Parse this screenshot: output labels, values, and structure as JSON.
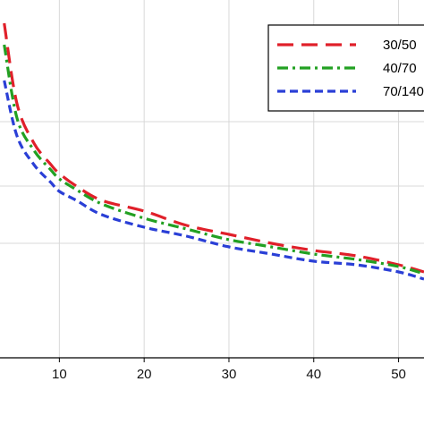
{
  "chart_data": {
    "type": "line",
    "xlim": [
      3,
      53
    ],
    "x_ticks": [
      10,
      20,
      30,
      40,
      50
    ],
    "x_tick_labels": [
      "10",
      "20",
      "30",
      "40",
      "50"
    ],
    "y_grid_fracs": [
      0.34,
      0.52,
      0.68
    ],
    "grid": true,
    "legend_position": "top-right",
    "xlabel": "",
    "ylabel": "",
    "title": "",
    "series": [
      {
        "name": "30/50",
        "color": "#e0202a",
        "dash": "long-dash",
        "x": [
          3.5,
          5,
          7,
          9,
          10,
          12,
          15,
          20,
          25,
          30,
          35,
          40,
          45,
          50,
          53
        ],
        "y_frac": [
          0.065,
          0.29,
          0.4,
          0.46,
          0.485,
          0.52,
          0.56,
          0.59,
          0.63,
          0.655,
          0.68,
          0.7,
          0.715,
          0.74,
          0.76
        ]
      },
      {
        "name": "40/70",
        "color": "#22a022",
        "dash": "dash-dot",
        "x": [
          3.5,
          5,
          7,
          9,
          10,
          12,
          15,
          20,
          25,
          30,
          35,
          40,
          45,
          50,
          53
        ],
        "y_frac": [
          0.125,
          0.33,
          0.42,
          0.475,
          0.5,
          0.53,
          0.57,
          0.61,
          0.64,
          0.67,
          0.69,
          0.71,
          0.725,
          0.745,
          0.765
        ]
      },
      {
        "name": "70/140",
        "color": "#2a3fd6",
        "dash": "short-dash",
        "x": [
          3.5,
          5,
          7,
          9,
          10,
          12,
          15,
          20,
          25,
          30,
          35,
          40,
          45,
          50,
          53
        ],
        "y_frac": [
          0.225,
          0.38,
          0.46,
          0.51,
          0.535,
          0.56,
          0.6,
          0.635,
          0.66,
          0.69,
          0.71,
          0.73,
          0.74,
          0.76,
          0.78
        ]
      }
    ]
  }
}
